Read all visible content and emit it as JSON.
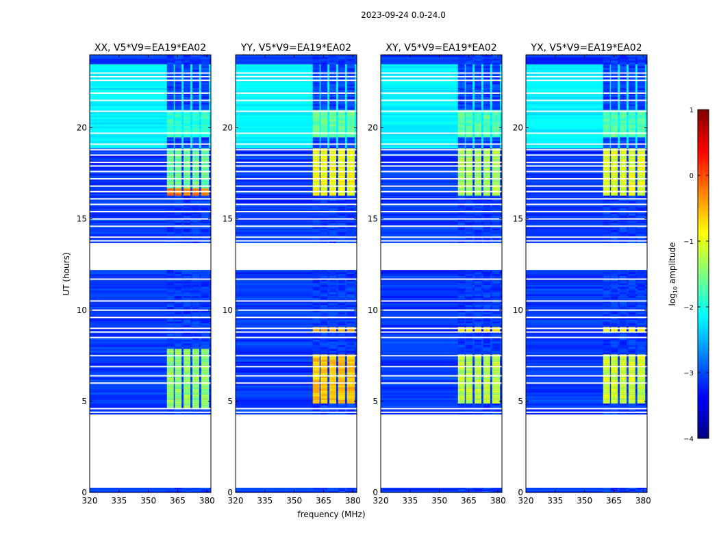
{
  "figure_title": "2023-09-24 0.0-24.0",
  "chart_data": {
    "type": "heatmap",
    "title": "2023-09-24 0.0-24.0",
    "xlabel": "frequency (MHz)",
    "ylabel": "UT (hours)",
    "xlim": [
      320,
      382
    ],
    "ylim": [
      0,
      24
    ],
    "xticks": [
      320,
      335,
      350,
      365,
      380
    ],
    "yticks": [
      0,
      5,
      10,
      15,
      20
    ],
    "colorbar": {
      "label": "log10 amplitude",
      "label_main": "log",
      "label_sub": "10",
      "label_rest": " amplitude",
      "range": [
        -4,
        1
      ],
      "ticks": [
        1,
        0,
        -1,
        -2,
        -3,
        -4
      ],
      "tick_labels": [
        "1",
        "0",
        "−1",
        "−2",
        "−3",
        "−4"
      ],
      "stops": [
        "#00007f",
        "#0000ff",
        "#007fff",
        "#00ffff",
        "#7fff7f",
        "#ffff00",
        "#ff7f00",
        "#ff0000",
        "#7f0000"
      ]
    },
    "data_time_ranges": [
      [
        0,
        0.3
      ],
      [
        4.3,
        12.2
      ],
      [
        13.7,
        24
      ]
    ],
    "rfi_channels_mhz": [
      [
        359.5,
        363
      ],
      [
        363.5,
        367
      ],
      [
        368,
        371.5
      ],
      [
        372.5,
        376
      ],
      [
        377,
        381
      ]
    ],
    "panels": [
      {
        "title": "XX, V5*V9=EA19*EA02",
        "peak_ranges": [
          [
            4.5,
            7.8,
            -1.4
          ],
          [
            16.2,
            16.6,
            -0.2
          ],
          [
            16.6,
            18.9,
            -1.6
          ],
          [
            19.5,
            21.0,
            -1.9
          ]
        ]
      },
      {
        "title": "YY, V5*V9=EA19*EA02",
        "peak_ranges": [
          [
            4.8,
            7.5,
            -0.6
          ],
          [
            8.7,
            9.0,
            -0.5
          ],
          [
            16.2,
            18.9,
            -0.9
          ],
          [
            19.5,
            21.0,
            -1.6
          ]
        ]
      },
      {
        "title": "XY, V5*V9=EA19*EA02",
        "peak_ranges": [
          [
            4.8,
            7.5,
            -1.2
          ],
          [
            8.7,
            9.0,
            -0.8
          ],
          [
            16.2,
            18.9,
            -1.3
          ],
          [
            19.5,
            21.0,
            -1.7
          ]
        ]
      },
      {
        "title": "YX, V5*V9=EA19*EA02",
        "peak_ranges": [
          [
            4.8,
            7.5,
            -1.1
          ],
          [
            8.7,
            9.0,
            -0.8
          ],
          [
            16.2,
            18.9,
            -1.0
          ],
          [
            19.5,
            21.0,
            -1.7
          ]
        ]
      }
    ],
    "flagged_hours": [
      0.3,
      4.4,
      4.6,
      6.0,
      6.4,
      6.9,
      7.5,
      8.5,
      8.8,
      9.0,
      9.6,
      10.0,
      10.5,
      11.7,
      13.8,
      14.0,
      14.6,
      15.0,
      15.4,
      15.8,
      16.1,
      16.5,
      16.8,
      17.2,
      17.6,
      17.9,
      18.1,
      18.5,
      18.8,
      19.1,
      19.7,
      20.9,
      21.5,
      21.9,
      22.6,
      22.8,
      23.0
    ]
  }
}
